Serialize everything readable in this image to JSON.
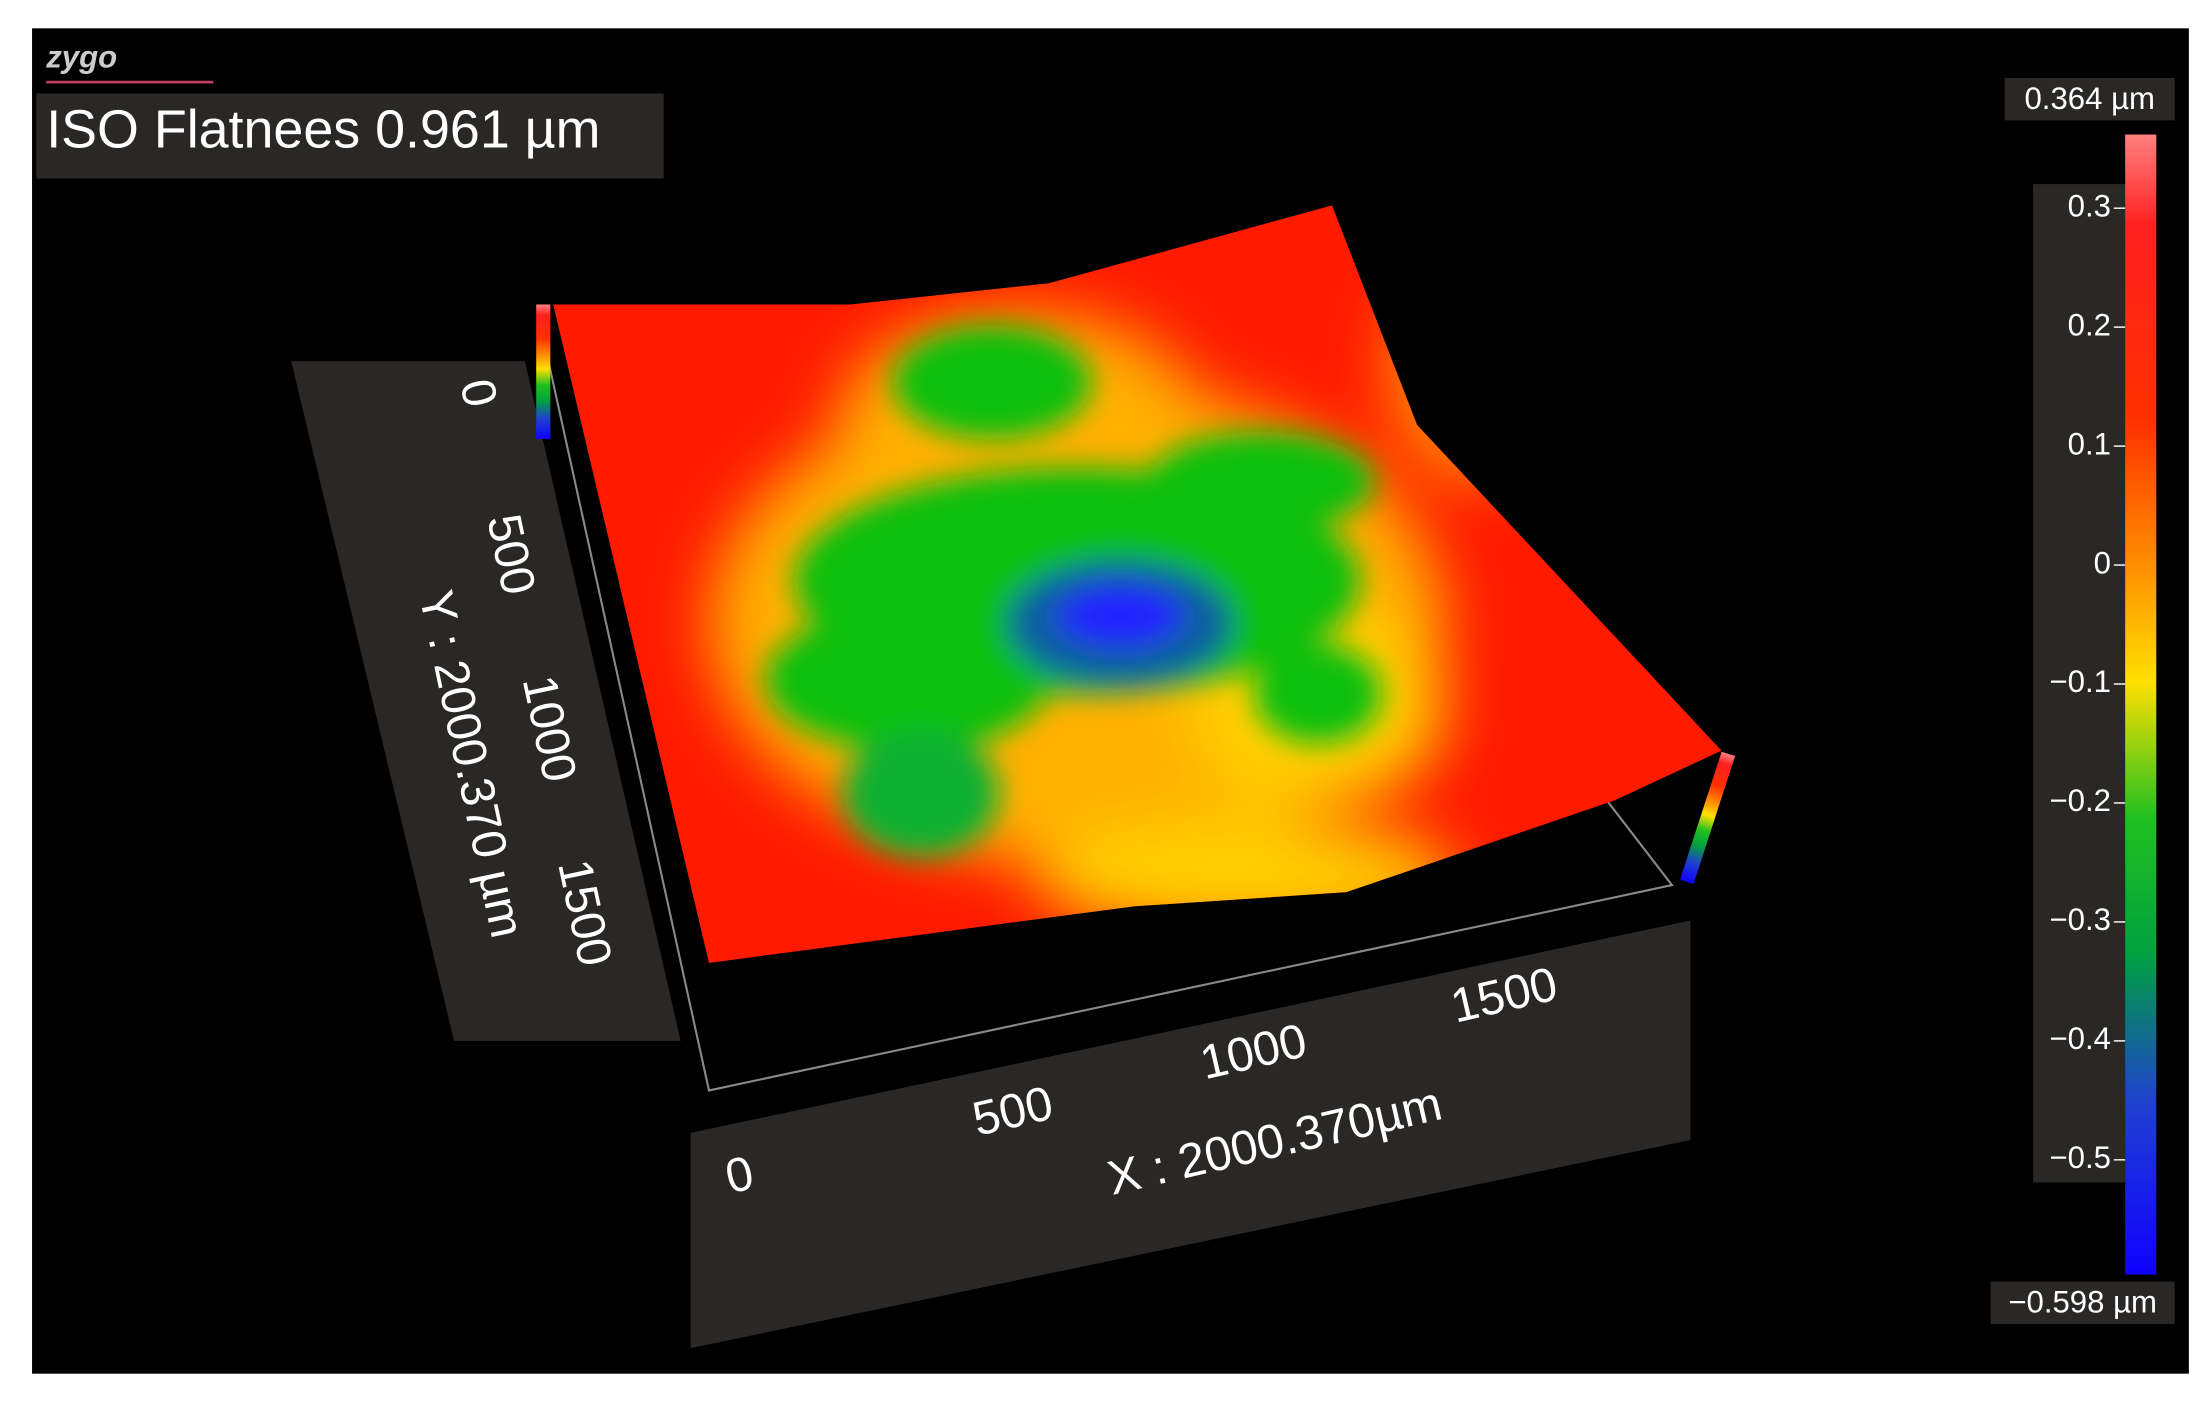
{
  "logo": "zygo",
  "title": "ISO Flatnees 0.961 µm",
  "colorbar": {
    "max_label": "0.364 µm",
    "min_label": "−0.598 µm",
    "ticks": [
      "0.3",
      "0.2",
      "0.1",
      "0",
      "−0.1",
      "−0.2",
      "−0.3",
      "−0.4",
      "−0.5"
    ]
  },
  "x_axis": {
    "label": "X : 2000.370µm",
    "ticks": [
      "0",
      "500",
      "1000",
      "1500"
    ]
  },
  "y_axis": {
    "label": "Y : 2000.370 µm",
    "ticks": [
      "0",
      "500",
      "1000",
      "1500"
    ]
  }
}
